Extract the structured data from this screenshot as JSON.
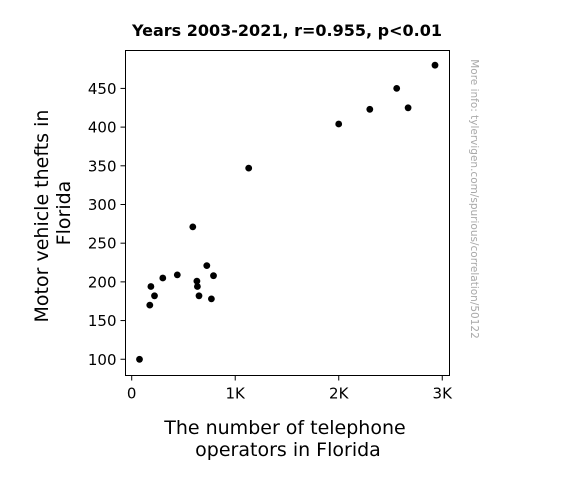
{
  "chart_data": {
    "type": "scatter",
    "title": "Years 2003-2021, r=0.955, p<0.01",
    "xlabel_lines": [
      "The number of telephone",
      "operators in Florida"
    ],
    "ylabel_lines": [
      "Motor vehicle thefts in",
      "Florida"
    ],
    "watermark": "More info: tylervigen.com/spurious/correlation/50122",
    "x_ticks": [
      {
        "value": 0,
        "label": "0"
      },
      {
        "value": 1000,
        "label": "1K"
      },
      {
        "value": 2000,
        "label": "2K"
      },
      {
        "value": 3000,
        "label": "3K"
      }
    ],
    "y_ticks": [
      {
        "value": 100,
        "label": "100"
      },
      {
        "value": 150,
        "label": "150"
      },
      {
        "value": 200,
        "label": "200"
      },
      {
        "value": 250,
        "label": "250"
      },
      {
        "value": 300,
        "label": "300"
      },
      {
        "value": 350,
        "label": "350"
      },
      {
        "value": 400,
        "label": "400"
      },
      {
        "value": 450,
        "label": "450"
      }
    ],
    "xlim": [
      -60,
      3070
    ],
    "ylim": [
      79,
      499
    ],
    "grid": false,
    "marker_color": "#000000",
    "points": [
      {
        "x": 75,
        "y": 100
      },
      {
        "x": 175,
        "y": 170
      },
      {
        "x": 185,
        "y": 194
      },
      {
        "x": 220,
        "y": 182
      },
      {
        "x": 300,
        "y": 205
      },
      {
        "x": 440,
        "y": 209
      },
      {
        "x": 590,
        "y": 271
      },
      {
        "x": 630,
        "y": 201
      },
      {
        "x": 635,
        "y": 194
      },
      {
        "x": 650,
        "y": 182
      },
      {
        "x": 725,
        "y": 221
      },
      {
        "x": 770,
        "y": 178
      },
      {
        "x": 790,
        "y": 208
      },
      {
        "x": 1130,
        "y": 347
      },
      {
        "x": 2000,
        "y": 404
      },
      {
        "x": 2300,
        "y": 423
      },
      {
        "x": 2560,
        "y": 450
      },
      {
        "x": 2670,
        "y": 425
      },
      {
        "x": 2930,
        "y": 480
      }
    ]
  }
}
